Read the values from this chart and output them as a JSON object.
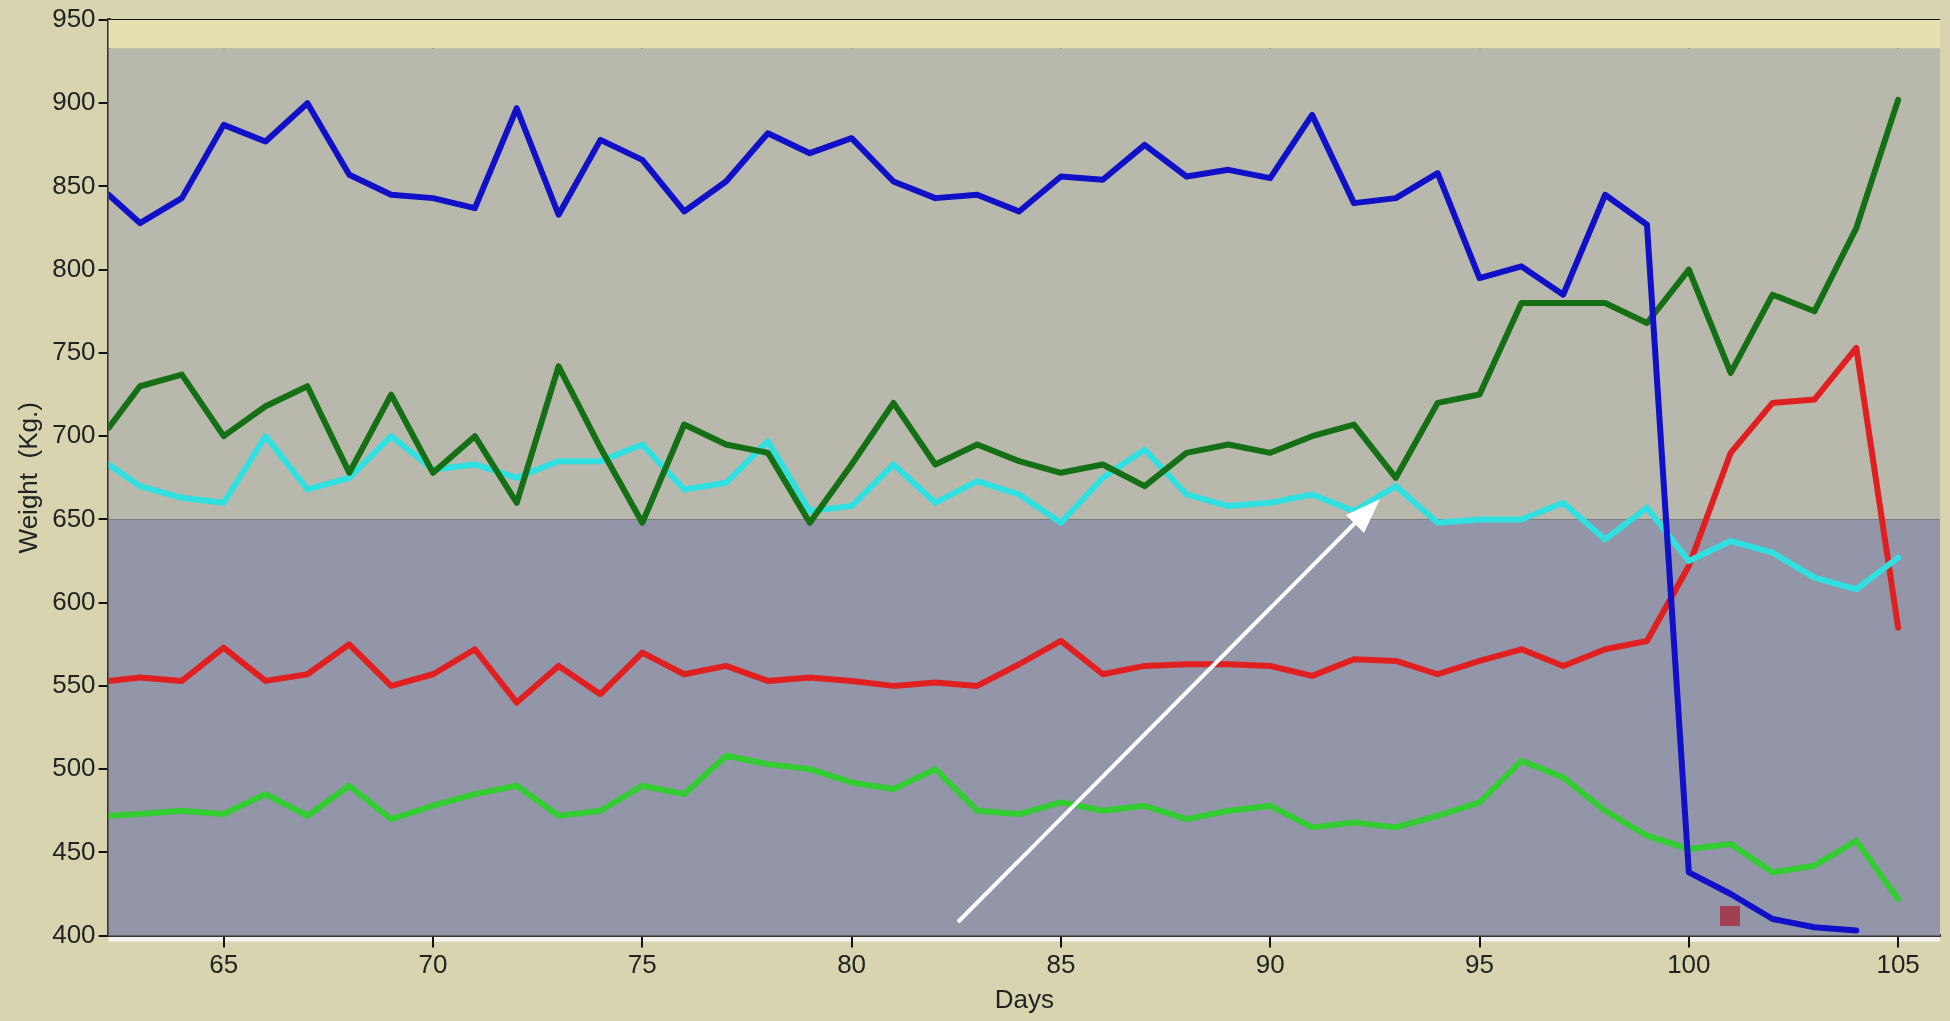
{
  "chart_data": {
    "type": "line",
    "xlabel": "Days",
    "ylabel": "Weight  (Kg.)",
    "xlim": [
      62.25,
      106
    ],
    "xticks": [
      65,
      70,
      75,
      80,
      85,
      90,
      95,
      100,
      105
    ],
    "ylim": [
      400,
      950
    ],
    "yticks": [
      400,
      450,
      500,
      550,
      600,
      650,
      700,
      750,
      800,
      850,
      900,
      950
    ],
    "grid": true,
    "legend": false,
    "marker": "none",
    "line_style": "solid",
    "bands": [
      {
        "axis": "y",
        "from": 933,
        "to": 950,
        "color": "#e6e0b0"
      },
      {
        "axis": "y",
        "from": 650,
        "to": 933,
        "color": "#b9b8ad"
      },
      {
        "axis": "y",
        "from": 400,
        "to": 650,
        "color": "#9395a8"
      }
    ],
    "x": [
      62.25,
      63,
      64,
      65,
      66,
      67,
      68,
      69,
      70,
      71,
      72,
      73,
      74,
      75,
      76,
      77,
      78,
      79,
      80,
      81,
      82,
      83,
      84,
      85,
      86,
      87,
      88,
      89,
      90,
      91,
      92,
      93,
      94,
      95,
      96,
      97,
      98,
      99,
      100,
      101,
      102,
      103,
      104,
      105
    ],
    "series": [
      {
        "color": "#1010c8",
        "values": [
          845,
          828,
          843,
          887,
          877,
          900,
          857,
          845,
          843,
          837,
          897,
          833,
          878,
          866,
          835,
          853,
          882,
          870,
          879,
          853,
          843,
          845,
          835,
          856,
          854,
          875,
          856,
          860,
          855,
          893,
          840,
          843,
          858,
          795,
          802,
          785,
          845,
          827,
          438,
          425,
          410,
          405,
          403,
          null
        ]
      },
      {
        "color": "#157015",
        "values": [
          705,
          730,
          737,
          700,
          718,
          730,
          678,
          725,
          678,
          700,
          660,
          742,
          693,
          648,
          707,
          695,
          690,
          648,
          683,
          720,
          683,
          695,
          685,
          678,
          683,
          670,
          690,
          695,
          690,
          700,
          707,
          675,
          720,
          725,
          780,
          780,
          780,
          768,
          800,
          738,
          785,
          775,
          825,
          902
        ]
      },
      {
        "color": "#30e0e0",
        "values": [
          683,
          670,
          663,
          660,
          700,
          668,
          675,
          700,
          680,
          683,
          675,
          685,
          685,
          695,
          668,
          672,
          697,
          655,
          658,
          683,
          660,
          673,
          665,
          648,
          675,
          692,
          665,
          658,
          660,
          665,
          655,
          670,
          648,
          650,
          650,
          660,
          638,
          657,
          625,
          637,
          630,
          615,
          608,
          627
        ]
      },
      {
        "color": "#e02020",
        "values": [
          553,
          555,
          553,
          573,
          553,
          557,
          575,
          550,
          557,
          572,
          540,
          562,
          545,
          570,
          557,
          562,
          553,
          555,
          553,
          550,
          552,
          550,
          563,
          577,
          557,
          562,
          563,
          563,
          562,
          556,
          566,
          565,
          557,
          565,
          572,
          562,
          572,
          577,
          622,
          690,
          720,
          722,
          753,
          585
        ]
      },
      {
        "color": "#33cc33",
        "values": [
          472,
          473,
          475,
          473,
          485,
          472,
          490,
          470,
          478,
          485,
          490,
          472,
          475,
          490,
          485,
          508,
          503,
          500,
          492,
          488,
          500,
          475,
          473,
          480,
          475,
          478,
          470,
          475,
          478,
          465,
          468,
          465,
          472,
          480,
          505,
          495,
          475,
          460,
          452,
          455,
          438,
          442,
          457,
          422
        ]
      }
    ]
  }
}
